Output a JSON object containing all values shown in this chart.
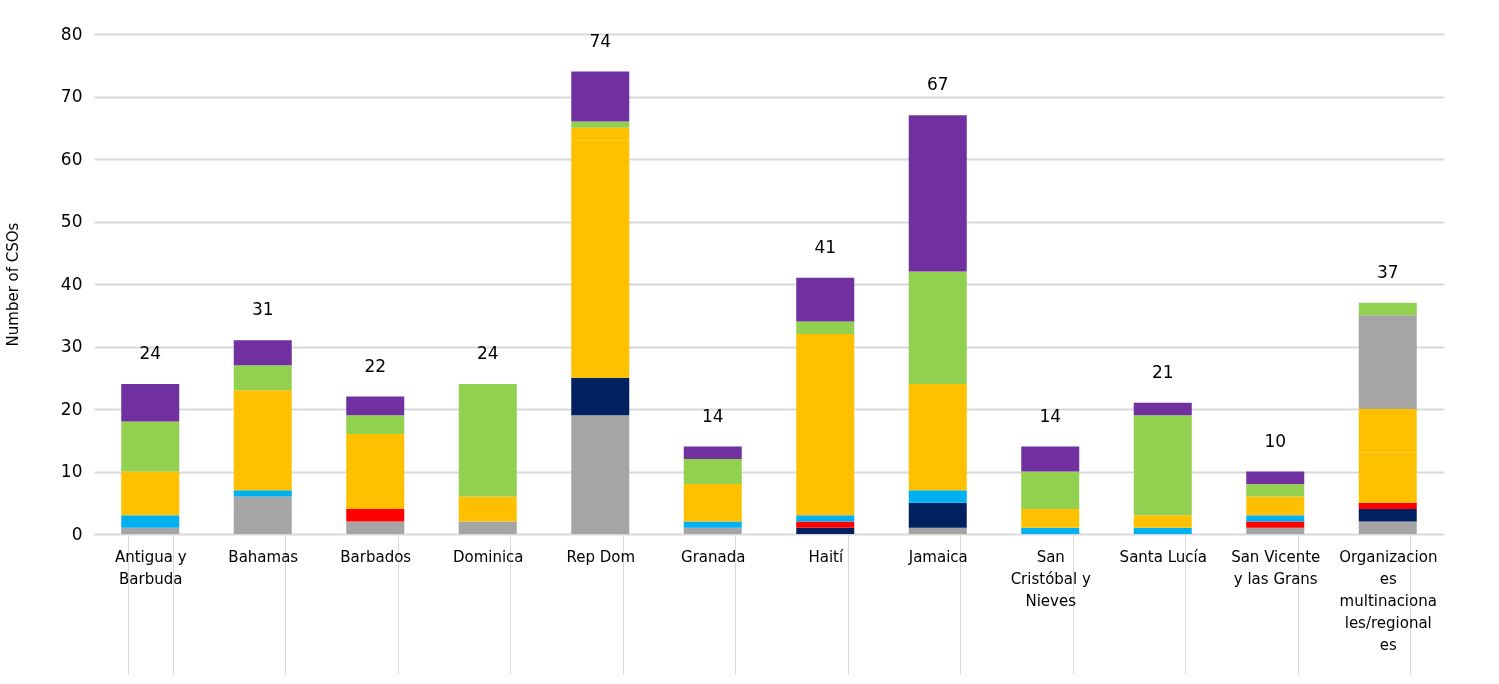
{
  "chart_data": {
    "type": "bar",
    "stacked": true,
    "ylabel": "Number of CSOs",
    "categories": [
      "Antigua y Barbuda",
      "Bahamas",
      "Barbados",
      "Dominica",
      "Rep Dom",
      "Granada",
      "Haití",
      "Jamaica",
      "San Cristóbal y Nieves",
      "Santa Lucía",
      "San Vicente y las Grans",
      "Organizaciones multinacionales/regionales"
    ],
    "series": [
      {
        "color": "#a5a5a5",
        "values": [
          1,
          6,
          2,
          2,
          19,
          1,
          null,
          1,
          null,
          null,
          1,
          2
        ]
      },
      {
        "color": "#002060",
        "values": [
          null,
          null,
          null,
          null,
          6,
          null,
          1,
          4,
          null,
          null,
          null,
          2
        ]
      },
      {
        "color": "#ff0000",
        "values": [
          null,
          null,
          2,
          null,
          null,
          null,
          1,
          null,
          null,
          null,
          1,
          1
        ]
      },
      {
        "color": "#00b0f0",
        "values": [
          2,
          1,
          null,
          null,
          null,
          1,
          1,
          2,
          1,
          1,
          1,
          null
        ]
      },
      {
        "color": "#ffc000",
        "values": [
          7,
          16,
          12,
          4,
          38,
          6,
          29,
          17,
          3,
          2,
          3,
          8
        ]
      },
      {
        "color": "#ffc000",
        "values": [
          null,
          null,
          null,
          null,
          2,
          null,
          null,
          null,
          null,
          null,
          null,
          7
        ]
      },
      {
        "color": "#a5a5a5",
        "values": [
          null,
          null,
          null,
          null,
          null,
          null,
          null,
          null,
          null,
          null,
          null,
          15
        ]
      },
      {
        "color": "#92d050",
        "values": [
          8,
          4,
          3,
          18,
          1,
          4,
          2,
          18,
          6,
          16,
          2,
          2
        ]
      },
      {
        "color": "#7030a0",
        "values": [
          6,
          4,
          3,
          null,
          8,
          2,
          7,
          25,
          4,
          2,
          2,
          null
        ]
      }
    ],
    "totals": [
      "24",
      "31",
      "22",
      "24",
      "74",
      "14",
      "41",
      "67",
      "14",
      "21",
      "10",
      "37"
    ],
    "ylim": [
      0,
      80
    ],
    "yticks": [
      0,
      10,
      20,
      30,
      40,
      50,
      60,
      70,
      80
    ],
    "grid": "y"
  }
}
